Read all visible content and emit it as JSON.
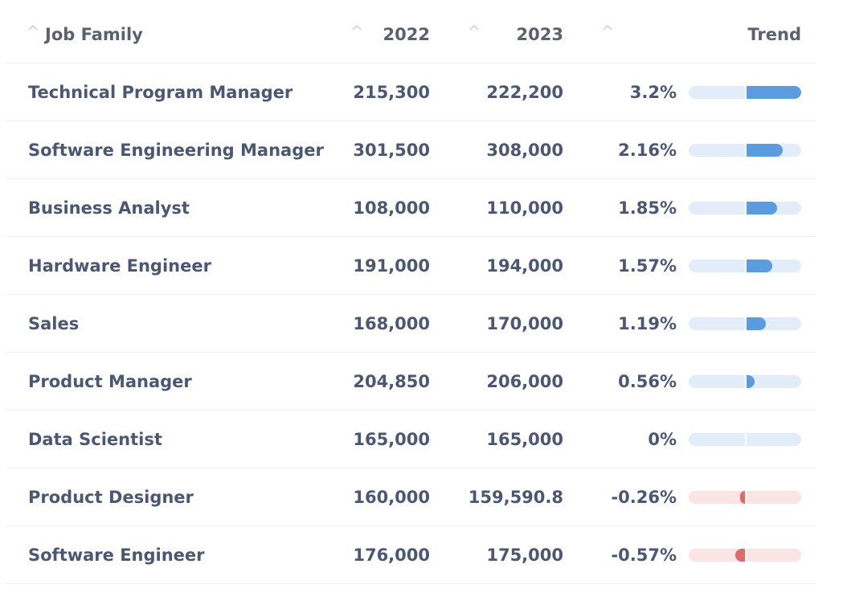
{
  "table": {
    "headers": {
      "job_family": "Job Family",
      "y2022": "2022",
      "y2023": "2023",
      "trend": "Trend"
    },
    "rows": [
      {
        "job_family": "Technical Program Manager",
        "y2022": "215,300",
        "y2023": "222,200",
        "pct": "3.2%",
        "trend_value": 3.2
      },
      {
        "job_family": "Software Engineering Manager",
        "y2022": "301,500",
        "y2023": "308,000",
        "pct": "2.16%",
        "trend_value": 2.16
      },
      {
        "job_family": "Business Analyst",
        "y2022": "108,000",
        "y2023": "110,000",
        "pct": "1.85%",
        "trend_value": 1.85
      },
      {
        "job_family": "Hardware Engineer",
        "y2022": "191,000",
        "y2023": "194,000",
        "pct": "1.57%",
        "trend_value": 1.57
      },
      {
        "job_family": "Sales",
        "y2022": "168,000",
        "y2023": "170,000",
        "pct": "1.19%",
        "trend_value": 1.19
      },
      {
        "job_family": "Product Manager",
        "y2022": "204,850",
        "y2023": "206,000",
        "pct": "0.56%",
        "trend_value": 0.56
      },
      {
        "job_family": "Data Scientist",
        "y2022": "165,000",
        "y2023": "165,000",
        "pct": "0%",
        "trend_value": 0
      },
      {
        "job_family": "Product Designer",
        "y2022": "160,000",
        "y2023": "159,590.8",
        "pct": "-0.26%",
        "trend_value": -0.26
      },
      {
        "job_family": "Software Engineer",
        "y2022": "176,000",
        "y2023": "175,000",
        "pct": "-0.57%",
        "trend_value": -0.57
      }
    ]
  },
  "trend_scale_max": 3.2,
  "colors": {
    "positive_fill": "#5b9be0",
    "positive_track": "#e3edf9",
    "negative_fill": "#e06a6a",
    "negative_track": "#fbe4e4"
  },
  "icons": {
    "sort": "chevron-up-icon"
  }
}
